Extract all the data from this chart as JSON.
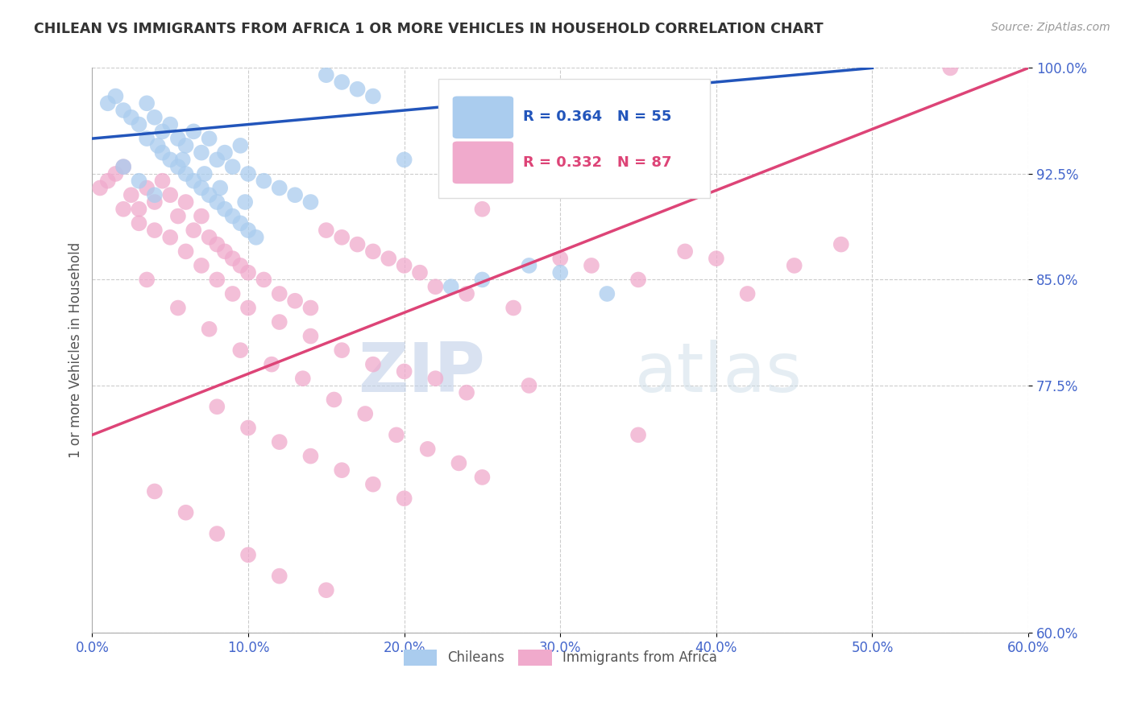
{
  "title": "CHILEAN VS IMMIGRANTS FROM AFRICA 1 OR MORE VEHICLES IN HOUSEHOLD CORRELATION CHART",
  "source_text": "Source: ZipAtlas.com",
  "ylabel": "1 or more Vehicles in Household",
  "xlim": [
    0.0,
    60.0
  ],
  "ylim": [
    60.0,
    100.0
  ],
  "xticks": [
    0.0,
    10.0,
    20.0,
    30.0,
    40.0,
    50.0,
    60.0
  ],
  "yticks": [
    60.0,
    77.5,
    85.0,
    92.5,
    100.0
  ],
  "xtick_labels": [
    "0.0%",
    "10.0%",
    "20.0%",
    "30.0%",
    "40.0%",
    "50.0%",
    "60.0%"
  ],
  "ytick_labels": [
    "60.0%",
    "77.5%",
    "85.0%",
    "92.5%",
    "100.0%"
  ],
  "r_blue": 0.364,
  "n_blue": 55,
  "r_pink": 0.332,
  "n_pink": 87,
  "title_color": "#333333",
  "axis_tick_color": "#4466cc",
  "grid_color": "#cccccc",
  "blue_scatter_color": "#aaccee",
  "pink_scatter_color": "#f0aacc",
  "blue_line_color": "#2255bb",
  "pink_line_color": "#dd4477",
  "watermark_zip_color": "#c8d8ee",
  "watermark_atlas_color": "#d8e8ee",
  "blue_line_x0": 0.0,
  "blue_line_y0": 95.0,
  "blue_line_x1": 50.0,
  "blue_line_y1": 100.0,
  "pink_line_x0": 0.0,
  "pink_line_y0": 74.0,
  "pink_line_x1": 60.0,
  "pink_line_y1": 100.0,
  "blue_points_x": [
    1.0,
    1.5,
    2.0,
    2.5,
    3.0,
    3.5,
    4.0,
    4.5,
    5.0,
    5.5,
    6.0,
    6.5,
    7.0,
    7.5,
    8.0,
    8.5,
    9.0,
    9.5,
    10.0,
    11.0,
    12.0,
    13.0,
    14.0,
    15.0,
    16.0,
    17.0,
    18.0,
    20.0,
    23.0,
    25.0,
    28.0,
    30.0,
    33.0,
    2.0,
    3.0,
    4.0,
    5.0,
    6.0,
    7.0,
    8.0,
    9.0,
    10.0,
    3.5,
    4.5,
    5.5,
    6.5,
    7.5,
    8.5,
    9.5,
    10.5,
    4.2,
    5.8,
    7.2,
    8.2,
    9.8
  ],
  "blue_points_y": [
    97.5,
    98.0,
    97.0,
    96.5,
    96.0,
    97.5,
    96.5,
    95.5,
    96.0,
    95.0,
    94.5,
    95.5,
    94.0,
    95.0,
    93.5,
    94.0,
    93.0,
    94.5,
    92.5,
    92.0,
    91.5,
    91.0,
    90.5,
    99.5,
    99.0,
    98.5,
    98.0,
    93.5,
    84.5,
    85.0,
    86.0,
    85.5,
    84.0,
    93.0,
    92.0,
    91.0,
    93.5,
    92.5,
    91.5,
    90.5,
    89.5,
    88.5,
    95.0,
    94.0,
    93.0,
    92.0,
    91.0,
    90.0,
    89.0,
    88.0,
    94.5,
    93.5,
    92.5,
    91.5,
    90.5
  ],
  "pink_points_x": [
    0.5,
    1.0,
    1.5,
    2.0,
    2.5,
    3.0,
    3.5,
    4.0,
    4.5,
    5.0,
    5.5,
    6.0,
    6.5,
    7.0,
    7.5,
    8.0,
    8.5,
    9.0,
    9.5,
    10.0,
    11.0,
    12.0,
    13.0,
    14.0,
    15.0,
    16.0,
    17.0,
    18.0,
    19.0,
    20.0,
    21.0,
    22.0,
    24.0,
    25.0,
    27.0,
    30.0,
    32.0,
    35.0,
    38.0,
    40.0,
    42.0,
    45.0,
    48.0,
    55.0,
    2.0,
    3.0,
    4.0,
    5.0,
    6.0,
    7.0,
    8.0,
    9.0,
    10.0,
    12.0,
    14.0,
    16.0,
    18.0,
    20.0,
    22.0,
    24.0,
    3.5,
    5.5,
    7.5,
    9.5,
    11.5,
    13.5,
    15.5,
    17.5,
    19.5,
    21.5,
    23.5,
    25.0,
    8.0,
    10.0,
    12.0,
    14.0,
    16.0,
    18.0,
    20.0,
    4.0,
    6.0,
    8.0,
    10.0,
    12.0,
    15.0,
    28.0,
    35.0
  ],
  "pink_points_y": [
    91.5,
    92.0,
    92.5,
    93.0,
    91.0,
    90.0,
    91.5,
    90.5,
    92.0,
    91.0,
    89.5,
    90.5,
    88.5,
    89.5,
    88.0,
    87.5,
    87.0,
    86.5,
    86.0,
    85.5,
    85.0,
    84.0,
    83.5,
    83.0,
    88.5,
    88.0,
    87.5,
    87.0,
    86.5,
    86.0,
    85.5,
    84.5,
    84.0,
    90.0,
    83.0,
    86.5,
    86.0,
    85.0,
    87.0,
    86.5,
    84.0,
    86.0,
    87.5,
    100.0,
    90.0,
    89.0,
    88.5,
    88.0,
    87.0,
    86.0,
    85.0,
    84.0,
    83.0,
    82.0,
    81.0,
    80.0,
    79.0,
    78.5,
    78.0,
    77.0,
    85.0,
    83.0,
    81.5,
    80.0,
    79.0,
    78.0,
    76.5,
    75.5,
    74.0,
    73.0,
    72.0,
    71.0,
    76.0,
    74.5,
    73.5,
    72.5,
    71.5,
    70.5,
    69.5,
    70.0,
    68.5,
    67.0,
    65.5,
    64.0,
    63.0,
    77.5,
    74.0
  ]
}
